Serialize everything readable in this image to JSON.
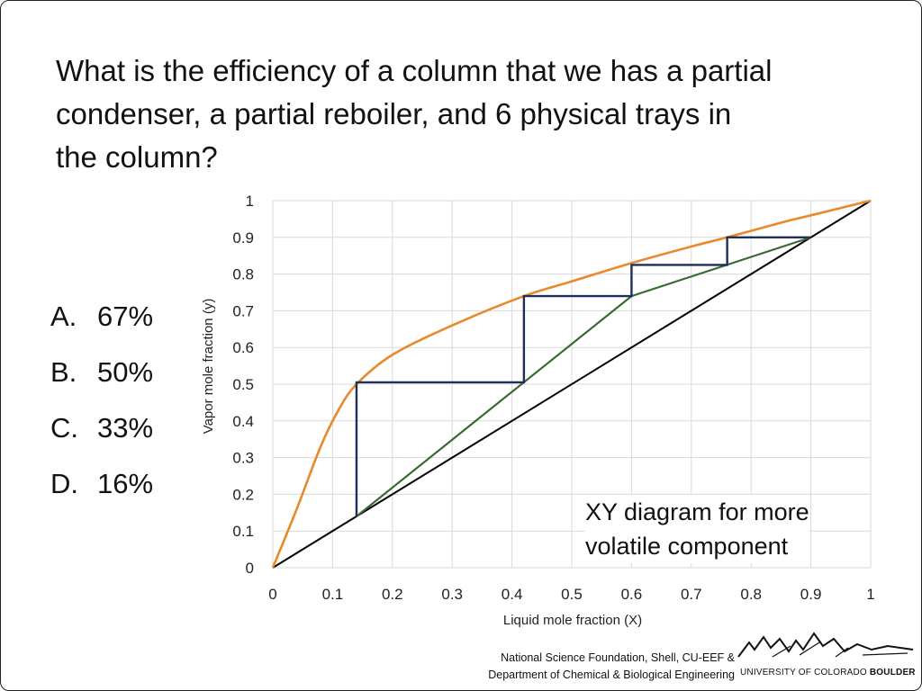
{
  "question": {
    "line1": "What is the efficiency of a column that we has a partial",
    "line2": "condenser, a partial reboiler, and 6 physical trays in",
    "line3": "the column?"
  },
  "options": [
    {
      "letter": "A.",
      "text": "67%"
    },
    {
      "letter": "B.",
      "text": "50%"
    },
    {
      "letter": "C.",
      "text": "33%"
    },
    {
      "letter": "D.",
      "text": "16%"
    }
  ],
  "caption": {
    "line1": "XY diagram for more",
    "line2": "volatile component"
  },
  "footer": {
    "line1": "National Science Foundation, Shell, CU-EEF &",
    "line2": "Department of Chemical & Biological Engineering",
    "university_regular": "UNIVERSITY OF COLORADO ",
    "university_bold": "BOULDER"
  },
  "colors": {
    "equilibrium": "#E8892B",
    "operating": "#3A6B35",
    "steps": "#1F2F5C",
    "diagonal": "#000000",
    "grid": "#D9D9D9"
  },
  "chart_data": {
    "type": "line",
    "xlabel": "Liquid mole fraction (X)",
    "ylabel": "Vapor mole fraction (y)",
    "xlim": [
      0,
      1
    ],
    "ylim": [
      0,
      1
    ],
    "x_ticks": [
      "0",
      "0.1",
      "0.2",
      "0.3",
      "0.4",
      "0.5",
      "0.6",
      "0.7",
      "0.8",
      "0.9",
      "1"
    ],
    "y_ticks": [
      "0",
      "0.1",
      "0.2",
      "0.3",
      "0.4",
      "0.5",
      "0.6",
      "0.7",
      "0.8",
      "0.9",
      "1"
    ],
    "grid": true,
    "series": [
      {
        "id": "equilibrium",
        "points": [
          [
            0,
            0
          ],
          [
            0.04,
            0.16
          ],
          [
            0.08,
            0.33
          ],
          [
            0.11,
            0.43
          ],
          [
            0.14,
            0.5
          ],
          [
            0.2,
            0.58
          ],
          [
            0.3,
            0.66
          ],
          [
            0.42,
            0.74
          ],
          [
            0.5,
            0.78
          ],
          [
            0.6,
            0.83
          ],
          [
            0.7,
            0.875
          ],
          [
            0.76,
            0.9
          ],
          [
            0.85,
            0.94
          ],
          [
            0.9,
            0.96
          ],
          [
            1,
            1
          ]
        ]
      },
      {
        "id": "diagonal",
        "points": [
          [
            0,
            0
          ],
          [
            1,
            1
          ]
        ]
      },
      {
        "id": "operating",
        "points": [
          [
            0.14,
            0.14
          ],
          [
            0.6,
            0.74
          ],
          [
            0.9,
            0.9
          ]
        ]
      },
      {
        "id": "steps",
        "points": [
          [
            0.9,
            0.9
          ],
          [
            0.76,
            0.9
          ],
          [
            0.76,
            0.825
          ],
          [
            0.6,
            0.825
          ],
          [
            0.6,
            0.74
          ],
          [
            0.42,
            0.74
          ],
          [
            0.42,
            0.505
          ],
          [
            0.14,
            0.505
          ],
          [
            0.14,
            0.14
          ]
        ]
      }
    ]
  }
}
